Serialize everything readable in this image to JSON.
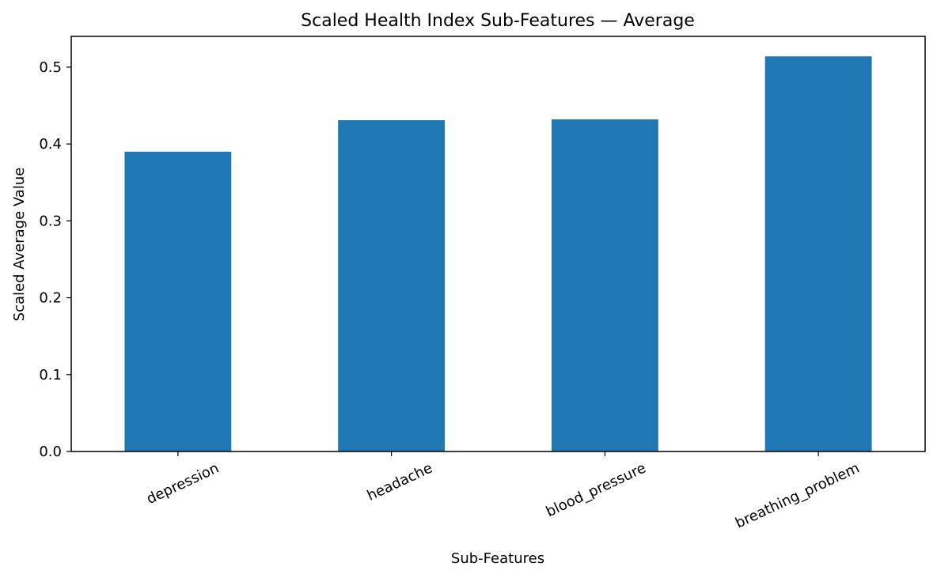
{
  "chart_data": {
    "type": "bar",
    "title": "Scaled Health Index Sub-Features — Average",
    "xlabel": "Sub-Features",
    "ylabel": "Scaled Average Value",
    "categories": [
      "depression",
      "headache",
      "blood_pressure",
      "breathing_problem"
    ],
    "values": [
      0.39,
      0.431,
      0.432,
      0.514
    ],
    "ylim": [
      0,
      0.54
    ],
    "yticks": [
      0.0,
      0.1,
      0.2,
      0.3,
      0.4,
      0.5
    ],
    "ytick_labels": [
      "0.0",
      "0.1",
      "0.2",
      "0.3",
      "0.4",
      "0.5"
    ],
    "xtick_rotation_deg": -25,
    "grid": false,
    "bar_color": "#1f77b4"
  }
}
